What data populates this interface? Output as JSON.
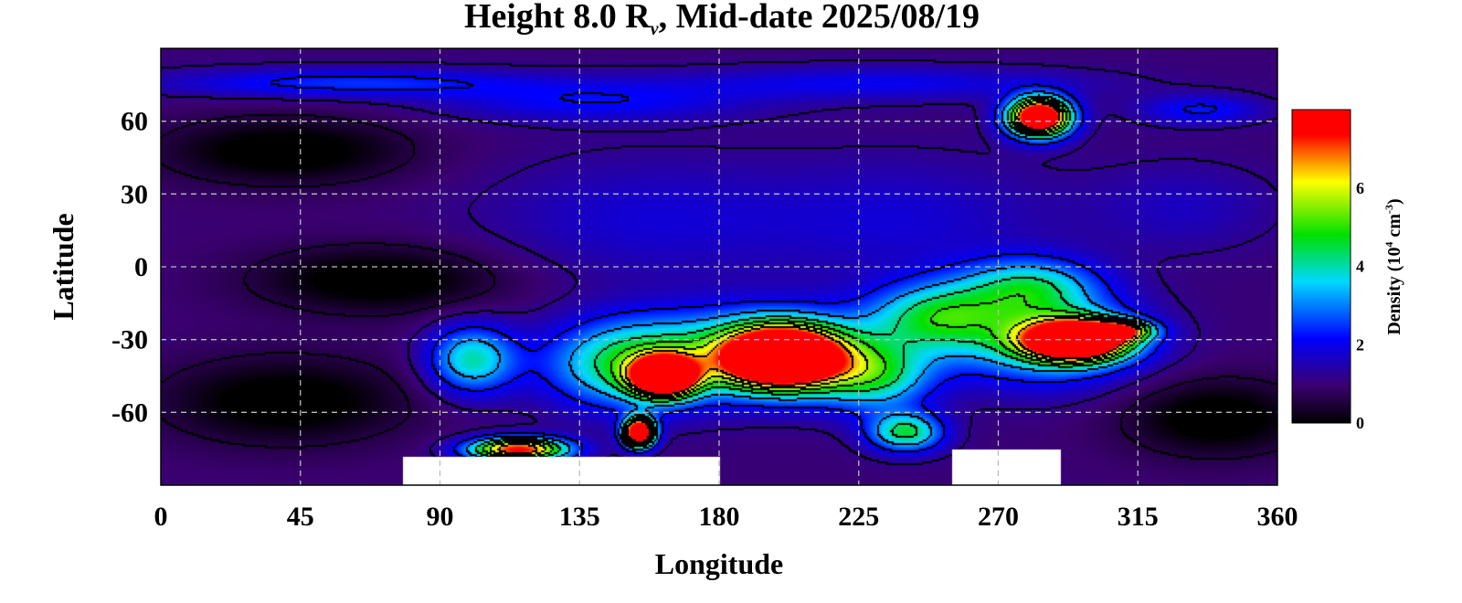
{
  "chart_data": {
    "type": "heatmap",
    "title": {
      "prefix": "Height 8.0 R",
      "subscript": "ν",
      "suffix": ", Mid-date 2025/08/19"
    },
    "xlabel": "Longitude",
    "ylabel": "Latitude",
    "xlim": [
      0,
      360
    ],
    "ylim": [
      -90,
      90
    ],
    "xticks": [
      0,
      45,
      90,
      135,
      180,
      225,
      270,
      315,
      360
    ],
    "yticks": [
      60,
      30,
      0,
      -30,
      -60
    ],
    "grid": true,
    "grid_style": "dashed",
    "contours": true,
    "colorbar": {
      "label_prefix": "Density (10",
      "label_exp": "4",
      "label_mid": " cm",
      "label_exp2": "-3",
      "label_suffix": ")",
      "range": [
        0,
        8
      ],
      "ticks": [
        0,
        2,
        4,
        6
      ],
      "colors": [
        "#000000",
        "#3a0070",
        "#0000ff",
        "#00d8ff",
        "#00e000",
        "#ffff00",
        "#ff0000"
      ]
    },
    "background_density": 1.0,
    "features": [
      {
        "lon": 100,
        "lat": -38,
        "density": 4.5,
        "rlon": 14,
        "rlat": 14
      },
      {
        "lon": 150,
        "lat": -40,
        "density": 4.8,
        "rlon": 26,
        "rlat": 18
      },
      {
        "lon": 195,
        "lat": -35,
        "density": 4.8,
        "rlon": 38,
        "rlat": 18
      },
      {
        "lon": 250,
        "lat": -20,
        "density": 4.6,
        "rlon": 22,
        "rlat": 14
      },
      {
        "lon": 230,
        "lat": -45,
        "density": 4.2,
        "rlon": 18,
        "rlat": 14
      },
      {
        "lon": 285,
        "lat": -30,
        "density": 4.5,
        "rlon": 30,
        "rlat": 18
      },
      {
        "lon": 280,
        "lat": -8,
        "density": 4.2,
        "rlon": 22,
        "rlat": 12
      },
      {
        "lon": 200,
        "lat": -37,
        "density": 8.5,
        "rlon": 18,
        "rlat": 12
      },
      {
        "lon": 162,
        "lat": -45,
        "density": 7.8,
        "rlon": 10,
        "rlat": 8
      },
      {
        "lon": 154,
        "lat": -68,
        "density": 8.0,
        "rlon": 5,
        "rlat": 6
      },
      {
        "lon": 295,
        "lat": -30,
        "density": 8.2,
        "rlon": 16,
        "rlat": 8
      },
      {
        "lon": 310,
        "lat": -26,
        "density": 5.5,
        "rlon": 10,
        "rlat": 4
      },
      {
        "lon": 115,
        "lat": -75,
        "density": 6.2,
        "rlon": 16,
        "rlat": 5
      },
      {
        "lon": 240,
        "lat": -68,
        "density": 5.0,
        "rlon": 12,
        "rlat": 8
      },
      {
        "lon": 283,
        "lat": 62,
        "density": 8.0,
        "rlon": 10,
        "rlat": 8
      },
      {
        "lon": 60,
        "lat": 76,
        "density": 2.7,
        "rlon": 60,
        "rlat": 6
      },
      {
        "lon": 140,
        "lat": 68,
        "density": 2.3,
        "rlon": 50,
        "rlat": 8
      },
      {
        "lon": 230,
        "lat": 76,
        "density": 2.2,
        "rlon": 70,
        "rlat": 7
      },
      {
        "lon": 335,
        "lat": 65,
        "density": 2.5,
        "rlon": 20,
        "rlat": 6
      },
      {
        "lon": 155,
        "lat": 20,
        "density": 1.9,
        "rlon": 50,
        "rlat": 25
      },
      {
        "lon": 240,
        "lat": 20,
        "density": 1.9,
        "rlon": 50,
        "rlat": 25
      },
      {
        "lon": 330,
        "lat": 25,
        "density": 1.7,
        "rlon": 30,
        "rlat": 18
      },
      {
        "lon": 40,
        "lat": 48,
        "density": -0.5,
        "rlon": 40,
        "rlat": 14
      },
      {
        "lon": 70,
        "lat": -5,
        "density": -0.5,
        "rlon": 40,
        "rlat": 14
      },
      {
        "lon": 40,
        "lat": -55,
        "density": -0.5,
        "rlon": 40,
        "rlat": 18
      },
      {
        "lon": 340,
        "lat": -62,
        "density": -0.5,
        "rlon": 30,
        "rlat": 16
      }
    ],
    "empty_regions": [
      {
        "lon_from": 78,
        "lon_to": 180,
        "lat_from": -78
      },
      {
        "lon_from": 255,
        "lon_to": 290,
        "lat_from": -75
      }
    ]
  }
}
